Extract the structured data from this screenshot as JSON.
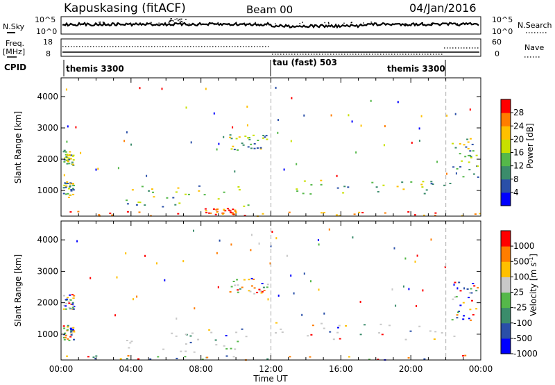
{
  "header": {
    "station": "Kapuskasing (fitACF)",
    "beam": "Beam 00",
    "date": "04/Jan/2016"
  },
  "top_panels": {
    "nsky_label": "N.Sky",
    "nsky_ticks": [
      "10^5",
      "10^0"
    ],
    "nsearch_label": "N.Search",
    "nsearch_ticks": [
      "10^5",
      "10^0"
    ],
    "freq_label_1": "Freq.",
    "freq_label_2": "[MHz]",
    "freq_ticks": [
      "18",
      "8"
    ],
    "nave_label": "Nave",
    "nave_ticks": [
      "60",
      "0"
    ],
    "cpid_label": "CPID"
  },
  "cpid_segments": [
    {
      "label": "themis 3300"
    },
    {
      "label": "tau (fast) 503"
    },
    {
      "label": "themis 3300"
    }
  ],
  "chart_data": [
    {
      "type": "heatmap",
      "name": "power",
      "xlabel": "",
      "ylabel": "Slant Range [km]",
      "xlim": [
        0,
        24
      ],
      "ylim": [
        180,
        4600
      ],
      "yticks": [
        "1000",
        "2000",
        "3000",
        "4000"
      ],
      "colorbar_label": "Power [dB]",
      "colorbar_ticks": [
        "28",
        "24",
        "20",
        "16",
        "12",
        "8",
        "4"
      ],
      "colors": [
        "#0000ff",
        "#2a4fa8",
        "#3b8c6b",
        "#55b84a",
        "#c8e000",
        "#ffc000",
        "#ff7d00",
        "#ff0000"
      ],
      "dashed_lines_ut": [
        12,
        22
      ],
      "regions": [
        {
          "t": [
            0.1,
            0.7
          ],
          "r": [
            1800,
            2300
          ]
        },
        {
          "t": [
            0.1,
            0.7
          ],
          "r": [
            800,
            1300
          ]
        },
        {
          "t": [
            3.5,
            10.7
          ],
          "r": [
            500,
            1200
          ]
        },
        {
          "t": [
            8.0,
            10.0
          ],
          "r": [
            250,
            450
          ]
        },
        {
          "t": [
            9.6,
            11.8
          ],
          "r": [
            2300,
            2800
          ]
        },
        {
          "t": [
            12.2,
            22.5
          ],
          "r": [
            900,
            1400
          ]
        },
        {
          "t": [
            22.3,
            23.8
          ],
          "r": [
            1400,
            2700
          ]
        },
        {
          "t": [
            0.0,
            24.0
          ],
          "r": [
            200,
            350
          ]
        }
      ]
    },
    {
      "type": "heatmap",
      "name": "velocity",
      "xlabel": "Time UT",
      "ylabel": "Slant Range [km]",
      "xlim": [
        0,
        24
      ],
      "ylim": [
        180,
        4600
      ],
      "xticks": [
        "00:00",
        "04:00",
        "08:00",
        "12:00",
        "16:00",
        "20:00",
        "00:00"
      ],
      "yticks": [
        "1000",
        "2000",
        "3000",
        "4000"
      ],
      "colorbar_label": "Velocity [m s",
      "colorbar_label_sup": "-1",
      "colorbar_ticks": [
        "1000",
        "500",
        "100",
        "25",
        "-25",
        "-100",
        "-500",
        "-1000"
      ],
      "colors": [
        "#0000ff",
        "#2a4fa8",
        "#3b8c6b",
        "#55b84a",
        "#c8c8c8",
        "#ffc000",
        "#ff7d00",
        "#ff0000"
      ],
      "dashed_lines_ut": [
        12,
        22
      ],
      "regions": [
        {
          "t": [
            0.1,
            0.7
          ],
          "r": [
            1800,
            2300
          ]
        },
        {
          "t": [
            0.1,
            0.7
          ],
          "r": [
            800,
            1300
          ]
        },
        {
          "t": [
            3.5,
            10.7
          ],
          "r": [
            450,
            1200
          ]
        },
        {
          "t": [
            9.6,
            11.8
          ],
          "r": [
            2300,
            2800
          ]
        },
        {
          "t": [
            12.2,
            22.5
          ],
          "r": [
            850,
            1400
          ]
        },
        {
          "t": [
            22.3,
            23.8
          ],
          "r": [
            1400,
            2700
          ]
        },
        {
          "t": [
            0.0,
            24.0
          ],
          "r": [
            200,
            350
          ]
        }
      ]
    }
  ]
}
